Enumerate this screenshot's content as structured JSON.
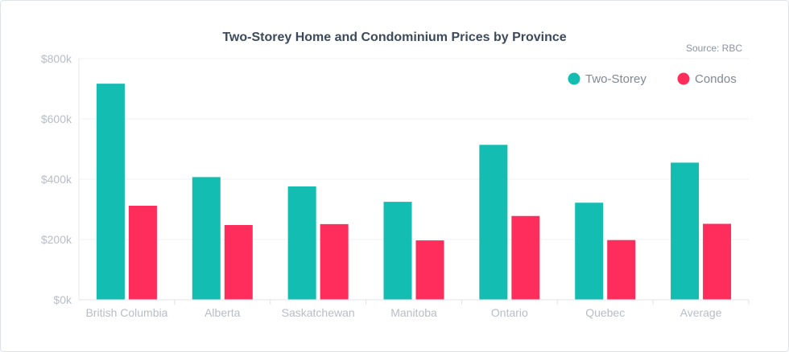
{
  "chart_data": {
    "type": "bar",
    "title": "Two-Storey Home and Condominium Prices by Province",
    "source": "Source: RBC",
    "categories": [
      "British Columbia",
      "Alberta",
      "Saskatchewan",
      "Manitoba",
      "Ontario",
      "Quebec",
      "Average"
    ],
    "series": [
      {
        "name": "Two-Storey",
        "color": "#14bdb2",
        "values": [
          717000,
          407000,
          376000,
          325000,
          514000,
          322000,
          455000
        ]
      },
      {
        "name": "Condos",
        "color": "#ff2d5c",
        "values": [
          312000,
          248000,
          251000,
          197000,
          278000,
          198000,
          252000
        ]
      }
    ],
    "ylim": [
      0,
      800000
    ],
    "yticks": [
      0,
      200000,
      400000,
      600000,
      800000
    ],
    "ytick_labels": [
      "$0k",
      "$200k",
      "$400k",
      "$600k",
      "$800k"
    ],
    "grid": true,
    "legend_position": "top-right"
  }
}
